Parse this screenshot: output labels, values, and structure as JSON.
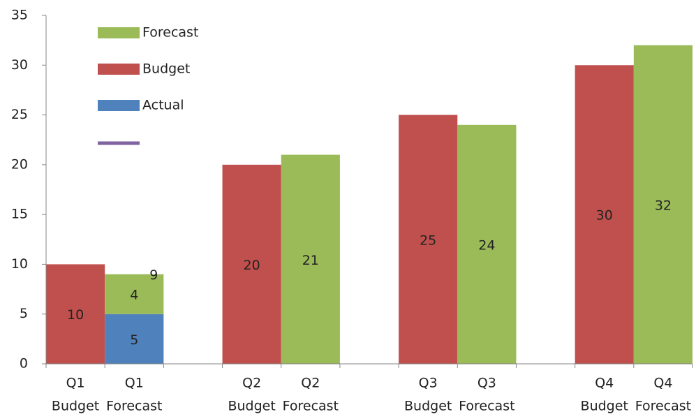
{
  "chart_data": {
    "type": "bar",
    "stacked": true,
    "categories": [
      [
        "Q1",
        "Budget"
      ],
      [
        "Q1",
        "Forecast"
      ],
      null,
      [
        "Q2",
        "Budget"
      ],
      [
        "Q2",
        "Forecast"
      ],
      null,
      [
        "Q3",
        "Budget"
      ],
      [
        "Q3",
        "Forecast"
      ],
      null,
      [
        "Q4",
        "Budget"
      ],
      [
        "Q4",
        "Forecast"
      ]
    ],
    "series": [
      {
        "name": "Budget",
        "color": "#c0504d",
        "values": [
          10,
          null,
          null,
          20,
          null,
          null,
          25,
          null,
          null,
          30,
          null
        ]
      },
      {
        "name": "Actual",
        "color": "#4f81bd",
        "values": [
          null,
          5,
          null,
          null,
          null,
          null,
          null,
          null,
          null,
          null,
          null
        ]
      },
      {
        "name": "Forecast",
        "color": "#9bbb59",
        "values": [
          null,
          4,
          null,
          null,
          21,
          null,
          null,
          24,
          null,
          null,
          32
        ]
      },
      {
        "name": null,
        "type": "line",
        "color": "#8064a2",
        "values": [
          null,
          9,
          null,
          null,
          null,
          null,
          null,
          null,
          null,
          null,
          null
        ]
      }
    ],
    "legend_order": [
      2,
      0,
      1,
      3
    ],
    "ylim": [
      0,
      35
    ],
    "yticks": [
      0,
      5,
      10,
      15,
      20,
      25,
      30,
      35
    ],
    "grid": false
  }
}
